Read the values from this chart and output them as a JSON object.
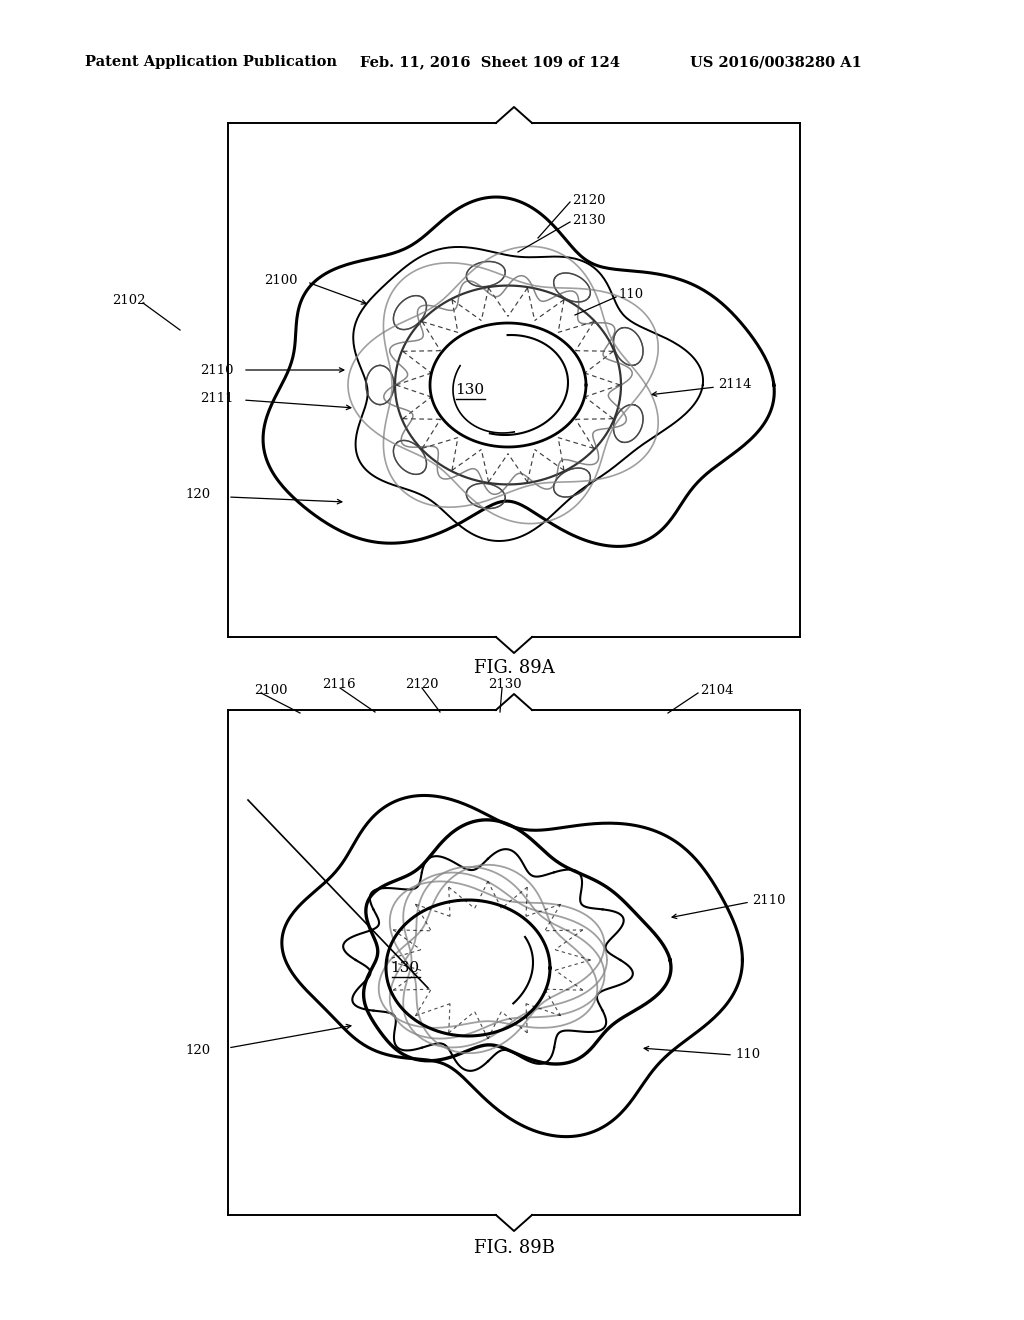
{
  "background_color": "#ffffff",
  "header_left": "Patent Application Publication",
  "header_mid": "Feb. 11, 2016  Sheet 109 of 124",
  "header_right": "US 2016/0038280 A1",
  "fig_label_a": "FIG. 89A",
  "fig_label_b": "FIG. 89B"
}
